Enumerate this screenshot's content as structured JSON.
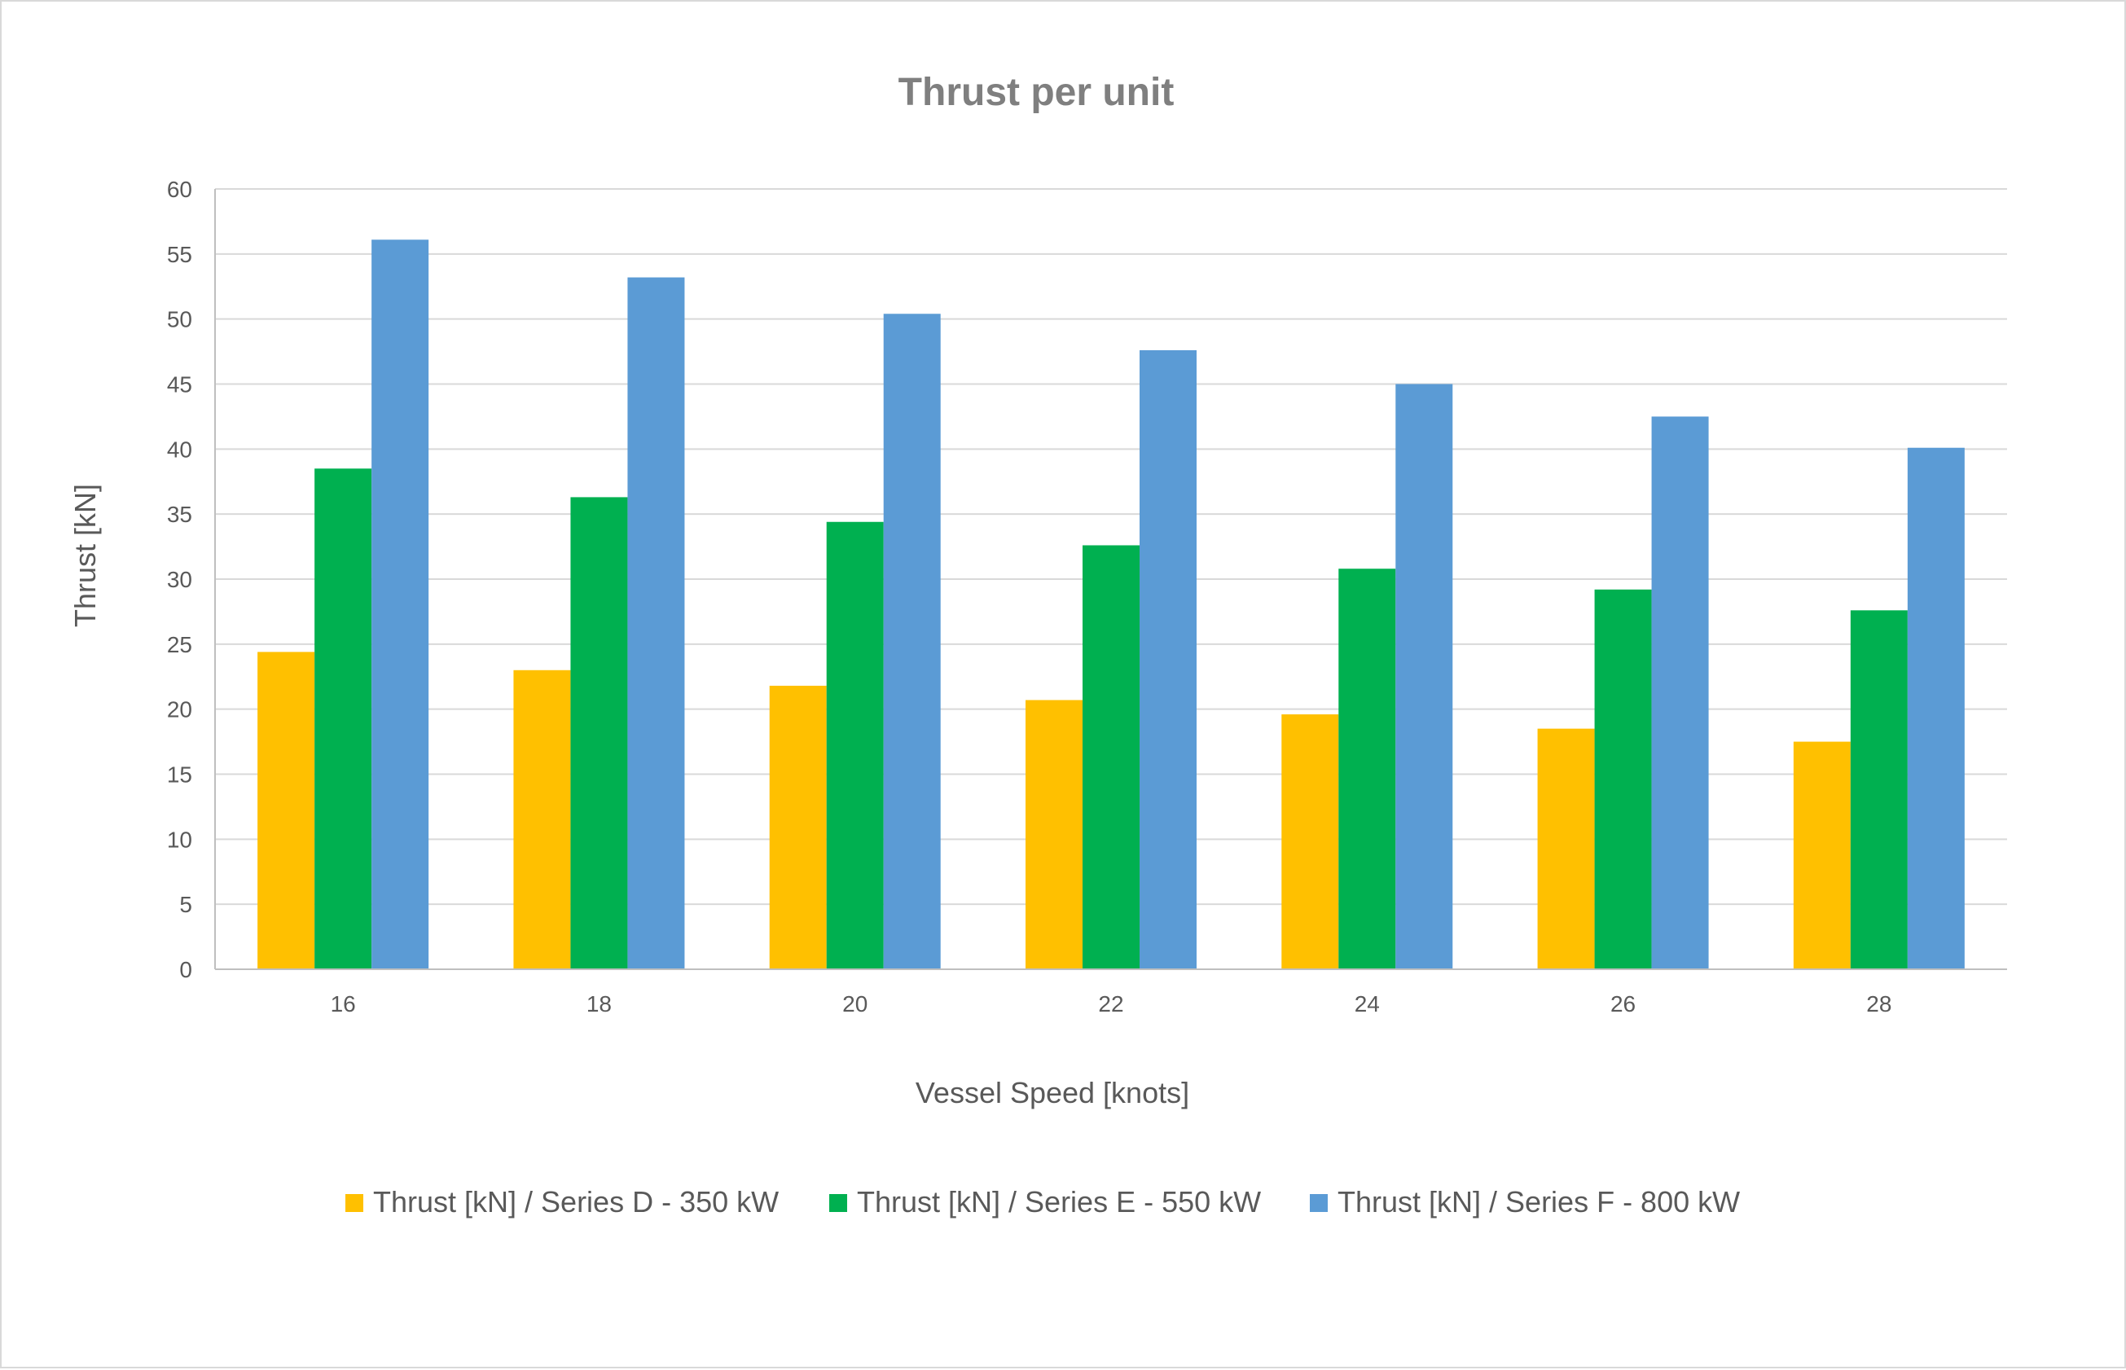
{
  "chart_data": {
    "type": "bar",
    "title": "Thrust per unit",
    "xlabel": "Vessel Speed [knots]",
    "ylabel": "Thrust [kN]",
    "categories": [
      "16",
      "18",
      "20",
      "22",
      "24",
      "26",
      "28"
    ],
    "ylim": [
      0,
      60
    ],
    "yticks": [
      "0",
      "5",
      "10",
      "15",
      "20",
      "25",
      "30",
      "35",
      "40",
      "45",
      "50",
      "55",
      "60"
    ],
    "grid": true,
    "legend_position": "bottom",
    "series": [
      {
        "name": "Thrust [kN] / Series D - 350 kW",
        "color": "#ffc000",
        "values": [
          24.4,
          23.0,
          21.8,
          20.7,
          19.6,
          18.5,
          17.5
        ]
      },
      {
        "name": "Thrust [kN] / Series E - 550 kW",
        "color": "#00b050",
        "values": [
          38.5,
          36.3,
          34.4,
          32.6,
          30.8,
          29.2,
          27.6
        ]
      },
      {
        "name": "Thrust [kN] / Series F - 800 kW",
        "color": "#5b9bd5",
        "values": [
          56.1,
          53.2,
          50.4,
          47.6,
          45.0,
          42.5,
          40.1
        ]
      }
    ]
  }
}
